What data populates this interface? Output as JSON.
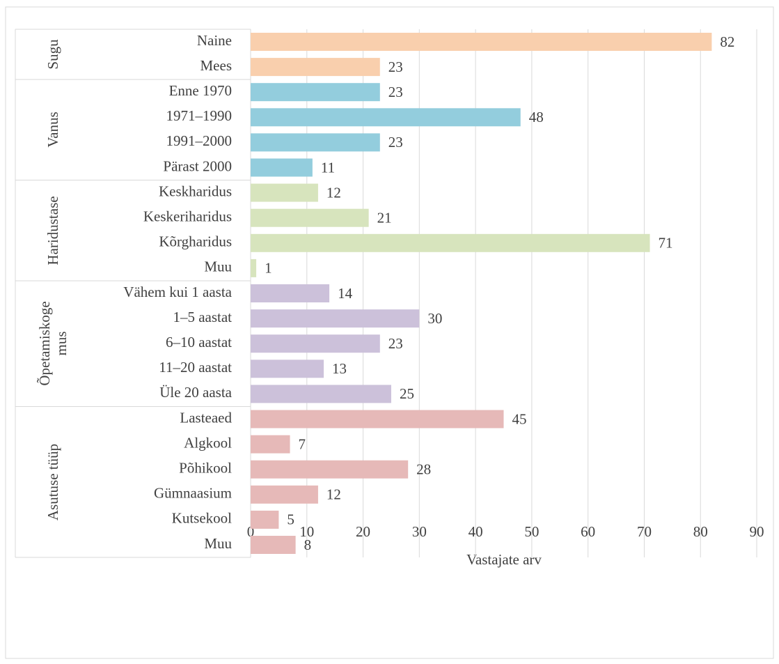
{
  "chart_data": {
    "type": "bar",
    "orientation": "horizontal",
    "xlabel": "Vastajate arv",
    "xlim": [
      0,
      90
    ],
    "xticks": [
      0,
      10,
      20,
      30,
      40,
      50,
      60,
      70,
      80,
      90
    ],
    "grid": true,
    "groups": [
      {
        "name": "Sugu",
        "color": "#f9cfad",
        "categories": [
          "Naine",
          "Mees"
        ],
        "values": [
          82,
          23
        ]
      },
      {
        "name": "Vanus",
        "color": "#93cddd",
        "categories": [
          "Enne 1970",
          "1971–1990",
          "1991–2000",
          "Pärast 2000"
        ],
        "values": [
          23,
          48,
          23,
          11
        ]
      },
      {
        "name": "Haridustase",
        "color": "#d7e4bd",
        "categories": [
          "Keskharidus",
          "Keskeriharidus",
          "Kõrgharidus",
          "Muu"
        ],
        "values": [
          12,
          21,
          71,
          1
        ]
      },
      {
        "name": "Õpetamiskoge\nmus",
        "color": "#ccc1da",
        "categories": [
          "Vähem kui 1 aasta",
          "1–5 aastat",
          "6–10 aastat",
          "11–20 aastat",
          "Üle 20 aasta"
        ],
        "values": [
          14,
          30,
          23,
          13,
          25
        ]
      },
      {
        "name": "Asutuse tüüp",
        "color": "#e6b9b8",
        "categories": [
          "Lasteaed",
          "Algkool",
          "Põhikool",
          "Gümnaasium",
          "Kutsekool",
          "Muu"
        ],
        "values": [
          45,
          7,
          28,
          12,
          5,
          8
        ]
      }
    ]
  }
}
